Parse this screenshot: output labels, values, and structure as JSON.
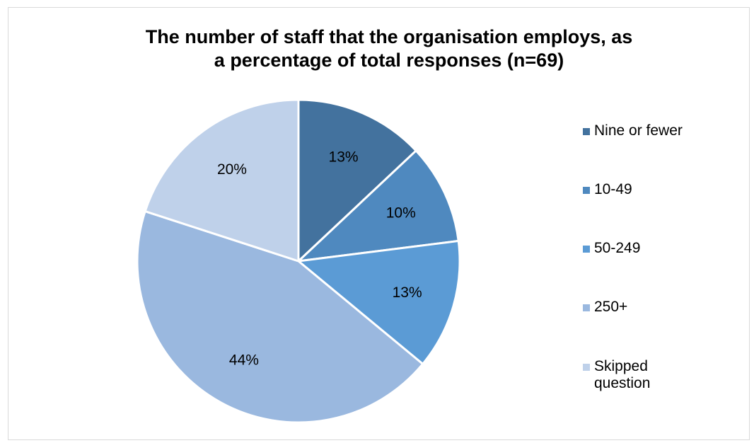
{
  "chart_data": {
    "type": "pie",
    "title": "The number of staff that the organisation employs, as a percentage of total responses (n=69)",
    "title_lines": [
      "The number of staff that the organisation employs, as",
      "a percentage of total responses (n=69)"
    ],
    "categories": [
      "Nine or fewer",
      "10-49",
      "50-249",
      "250+",
      "Skipped question"
    ],
    "values": [
      13,
      10,
      13,
      44,
      20
    ],
    "data_labels": [
      "13%",
      "10%",
      "13%",
      "44%",
      "20%"
    ],
    "colors": [
      "#43729e",
      "#4f89bf",
      "#5b9bd5",
      "#9ab8df",
      "#bfd1ea"
    ],
    "legend_position": "right",
    "start_angle_deg": 0,
    "direction": "clockwise"
  }
}
